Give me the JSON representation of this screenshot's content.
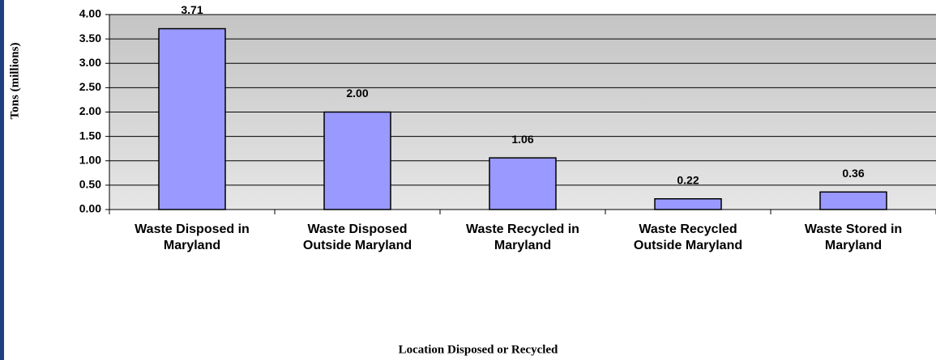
{
  "chart_data": {
    "type": "bar",
    "xlabel": "Location Disposed or Recycled",
    "ylabel": "Tons (millions)",
    "categories": [
      "Waste Disposed in Maryland",
      "Waste Disposed Outside Maryland",
      "Waste Recycled in Maryland",
      "Waste Recycled Outside Maryland",
      "Waste Stored in Maryland"
    ],
    "values": [
      3.71,
      2,
      1.06,
      0.22,
      0.36
    ],
    "value_labels": [
      "3.71",
      "2.00",
      "1.06",
      "0.22",
      "0.36"
    ],
    "color": "#9999ff",
    "ylim": [
      0,
      4
    ],
    "yticks": [
      {
        "value": 0,
        "label": "0.00"
      },
      {
        "value": 0.5,
        "label": "0.50"
      },
      {
        "value": 1,
        "label": "1.00"
      },
      {
        "value": 1.5,
        "label": "1.50"
      },
      {
        "value": 2,
        "label": "2.00"
      },
      {
        "value": 2.5,
        "label": "2.50"
      },
      {
        "value": 3,
        "label": "3.00"
      },
      {
        "value": 3.5,
        "label": "3.50"
      },
      {
        "value": 4,
        "label": "4.00"
      }
    ],
    "grid": true
  }
}
